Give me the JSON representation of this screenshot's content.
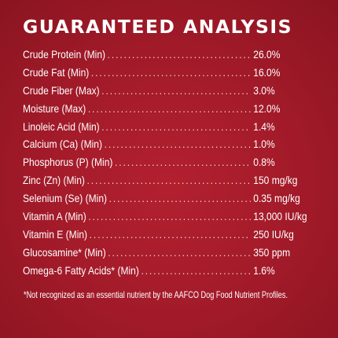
{
  "title": "GUARANTEED ANALYSIS",
  "rows": [
    {
      "label": "Crude Protein (Min)",
      "value": "26.0%"
    },
    {
      "label": "Crude Fat (Min)",
      "value": "16.0%"
    },
    {
      "label": "Crude Fiber (Max)",
      "value": "3.0%"
    },
    {
      "label": "Moisture (Max)",
      "value": "12.0%"
    },
    {
      "label": "Linoleic Acid (Min)",
      "value": "1.4%"
    },
    {
      "label": "Calcium (Ca) (Min)",
      "value": "1.0%"
    },
    {
      "label": "Phosphorus (P) (Min)",
      "value": "0.8%"
    },
    {
      "label": "Zinc (Zn) (Min)",
      "value": "150 mg/kg"
    },
    {
      "label": "Selenium (Se) (Min)",
      "value": "0.35 mg/kg"
    },
    {
      "label": "Vitamin A (Min)",
      "value": "13,000 IU/kg"
    },
    {
      "label": "Vitamin E (Min)",
      "value": "250 IU/kg"
    },
    {
      "label": "Glucosamine* (Min)",
      "value": "350 ppm"
    },
    {
      "label": "Omega-6 Fatty Acids* (Min)",
      "value": "1.6%"
    }
  ],
  "footnote": "*Not recognized as an essential nutrient by the AAFCO Dog Food Nutrient Profiles.",
  "colors": {
    "background": "#a11a29",
    "text": "#ffffff"
  }
}
